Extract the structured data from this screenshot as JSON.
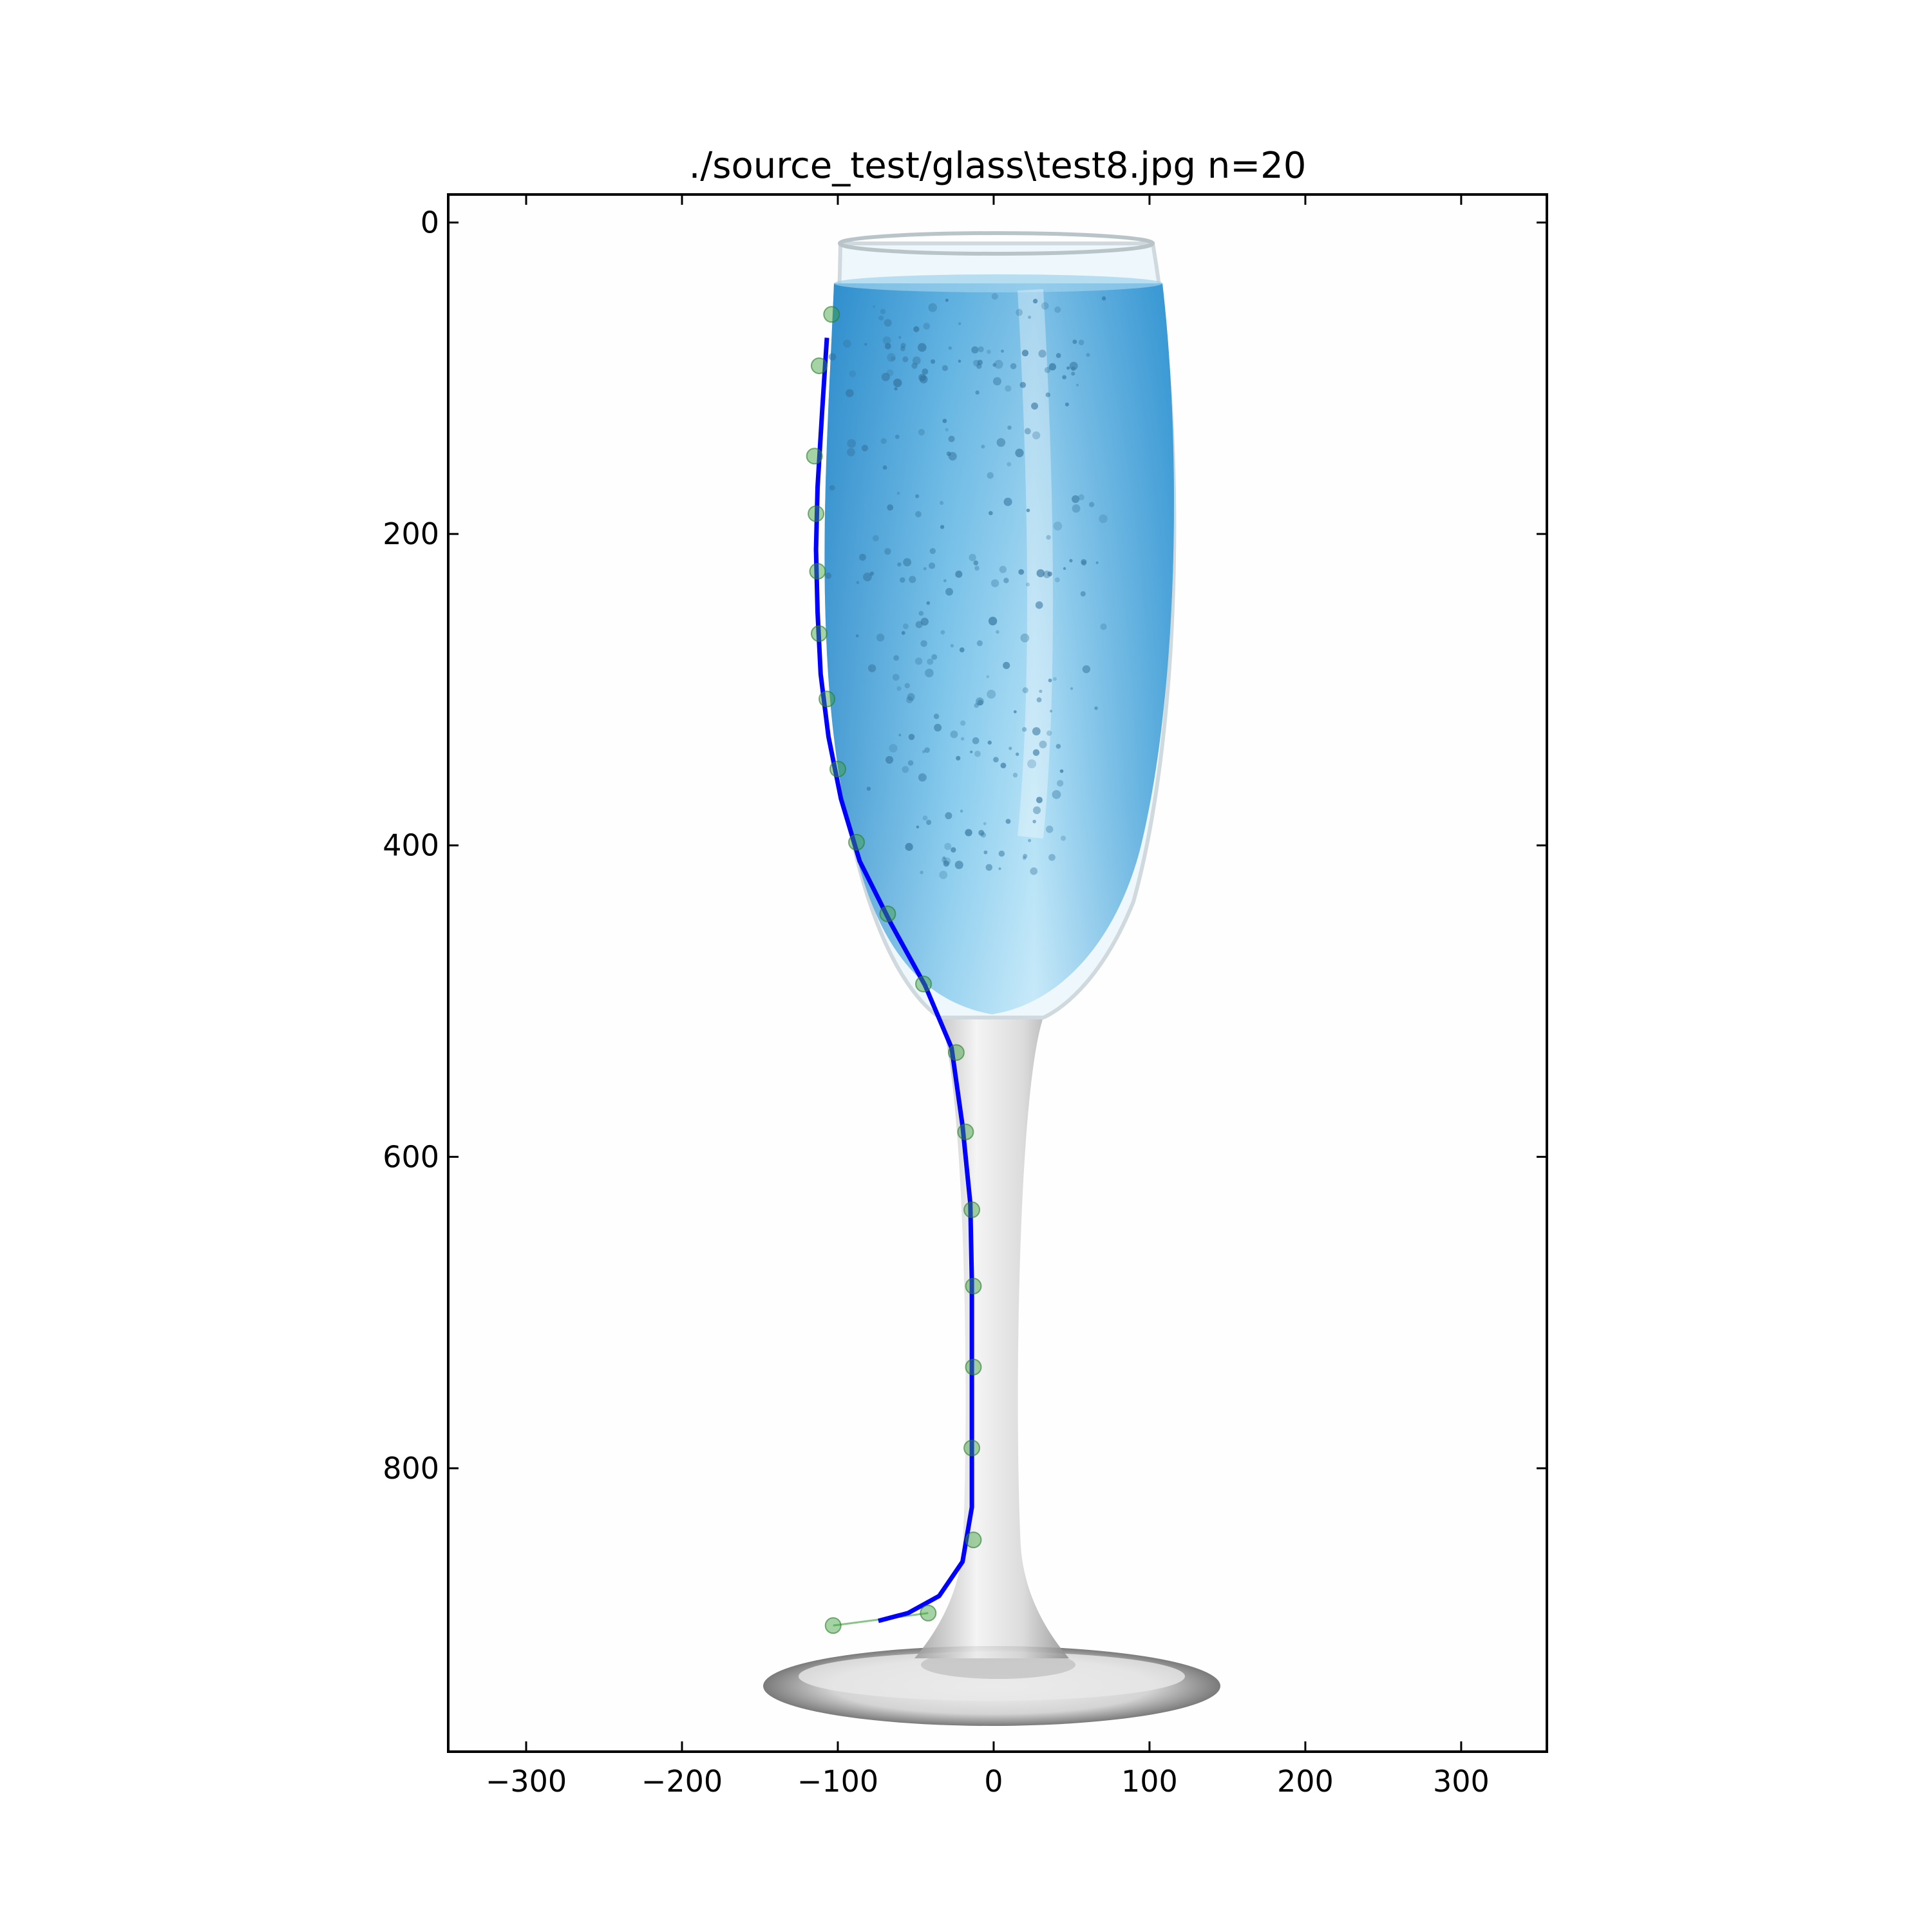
{
  "chart_data": {
    "type": "scatter",
    "title": "./source_test/glass\\test8.jpg n=20",
    "xlabel": "",
    "ylabel": "",
    "xlim": [
      -350,
      355
    ],
    "ylim": [
      -18,
      982
    ],
    "y_inverted": true,
    "grid": false,
    "xticks": [
      -300,
      -200,
      -100,
      0,
      100,
      200,
      300
    ],
    "xtick_labels": [
      "−300",
      "−200",
      "−100",
      "0",
      "100",
      "200",
      "300"
    ],
    "yticks": [
      0,
      200,
      400,
      600,
      800
    ],
    "ytick_labels": [
      "0",
      "200",
      "400",
      "600",
      "800"
    ],
    "background_image": "champagne-flute-photo",
    "colors": {
      "fit_line": "#0000ff",
      "points": "#3c9f3c",
      "liquid": "#4aa3d6"
    },
    "series": [
      {
        "kind": "scatter",
        "x": [
          -104,
          -112,
          -115,
          -114,
          -113,
          -112,
          -107,
          -100,
          -88,
          -68,
          -45,
          -24,
          -18,
          -14,
          -13,
          -13,
          -14,
          -13,
          -42,
          -103
        ],
        "y": [
          59,
          92,
          150,
          187,
          224,
          264,
          306,
          351,
          398,
          444,
          489,
          533,
          584,
          634,
          683,
          735,
          787,
          846,
          893,
          901
        ]
      },
      {
        "kind": "line",
        "x": [
          -107,
          -110,
          -113,
          -114,
          -113,
          -111,
          -106,
          -98,
          -86,
          -66,
          -44,
          -27,
          -20,
          -15,
          -14,
          -14,
          -14,
          -14,
          -20,
          -35,
          -55,
          -74
        ],
        "y": [
          74,
          120,
          170,
          210,
          250,
          290,
          330,
          370,
          410,
          450,
          490,
          530,
          580,
          630,
          680,
          730,
          780,
          825,
          860,
          882,
          893,
          898
        ]
      }
    ]
  }
}
